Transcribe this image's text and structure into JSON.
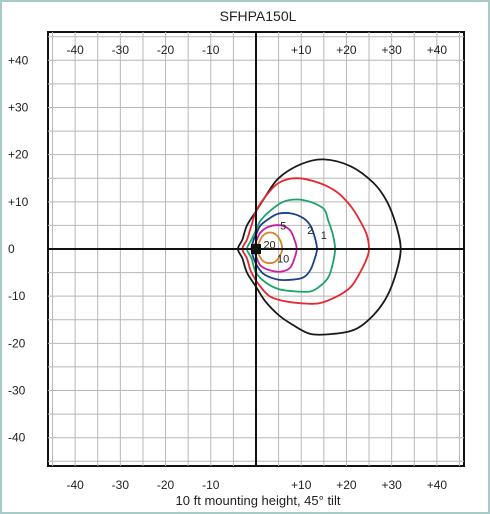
{
  "chart_data": {
    "type": "line",
    "title": "SFHPA150L",
    "xlabel": "10 ft mounting height, 45° tilt",
    "ylabel": "",
    "xlim": [
      -46,
      46
    ],
    "ylim": [
      -46,
      46
    ],
    "grid": true,
    "x_ticks": [
      "-40",
      "-30",
      "-20",
      "-10",
      "+10",
      "+20",
      "+30",
      "+40"
    ],
    "x_tick_values": [
      -40,
      -30,
      -20,
      -10,
      10,
      20,
      30,
      40
    ],
    "y_ticks": [
      "+40",
      "+30",
      "+20",
      "+10",
      "0",
      "-10",
      "-20",
      "-30",
      "-40"
    ],
    "y_tick_values": [
      40,
      30,
      20,
      10,
      0,
      -10,
      -20,
      -30,
      -40
    ],
    "fixture_marker": {
      "x": 0,
      "y": 0,
      "color": "#111111"
    },
    "series": [
      {
        "label": "1",
        "color": "#1a1a1a",
        "label_pos": {
          "x": 15,
          "y": 3
        },
        "points": [
          [
            -3,
            2
          ],
          [
            -4,
            0
          ],
          [
            -3,
            -2
          ],
          [
            -2,
            -5
          ],
          [
            0,
            -8
          ],
          [
            2,
            -11
          ],
          [
            5,
            -14
          ],
          [
            8,
            -16
          ],
          [
            12,
            -18
          ],
          [
            17,
            -18
          ],
          [
            22,
            -17
          ],
          [
            26,
            -14
          ],
          [
            29,
            -10
          ],
          [
            31,
            -5
          ],
          [
            32,
            0
          ],
          [
            31,
            5
          ],
          [
            29,
            10
          ],
          [
            26,
            14
          ],
          [
            21,
            17.5
          ],
          [
            15,
            19
          ],
          [
            10,
            18
          ],
          [
            5,
            15
          ],
          [
            2,
            11
          ],
          [
            0,
            8
          ],
          [
            -2,
            5
          ]
        ]
      },
      {
        "label": "2",
        "color": "#e8262d",
        "label_pos": {
          "x": 12,
          "y": 4
        },
        "points": [
          [
            -2,
            2
          ],
          [
            -3,
            0
          ],
          [
            -2,
            -2
          ],
          [
            -1,
            -5
          ],
          [
            1,
            -8
          ],
          [
            3,
            -10
          ],
          [
            6,
            -11
          ],
          [
            10,
            -11.5
          ],
          [
            14,
            -11.5
          ],
          [
            18,
            -10
          ],
          [
            21,
            -8
          ],
          [
            23,
            -5
          ],
          [
            24.5,
            -2
          ],
          [
            25,
            0
          ],
          [
            24.5,
            3
          ],
          [
            23,
            6
          ],
          [
            21,
            9
          ],
          [
            18,
            12
          ],
          [
            14,
            14
          ],
          [
            9,
            15
          ],
          [
            5,
            14
          ],
          [
            2,
            11
          ],
          [
            0,
            8
          ],
          [
            -1,
            5
          ]
        ]
      },
      {
        "label": "5",
        "color": "#1aa36b",
        "label_pos": {
          "x": 6,
          "y": 5
        },
        "points": [
          [
            -1,
            2
          ],
          [
            -2,
            0
          ],
          [
            -1,
            -2
          ],
          [
            0,
            -5
          ],
          [
            2,
            -7
          ],
          [
            5,
            -8.5
          ],
          [
            9,
            -9
          ],
          [
            12,
            -9
          ],
          [
            14,
            -8
          ],
          [
            16,
            -6
          ],
          [
            17,
            -3
          ],
          [
            17.5,
            0
          ],
          [
            17,
            3
          ],
          [
            16,
            6
          ],
          [
            15,
            8.5
          ],
          [
            12,
            10
          ],
          [
            9,
            10.5
          ],
          [
            6,
            10
          ],
          [
            3,
            8
          ],
          [
            1,
            6
          ],
          [
            0,
            4
          ]
        ]
      },
      {
        "label": "10",
        "color": "#1a3f8c",
        "label_pos": {
          "x": 6,
          "y": -2
        },
        "points": [
          [
            -0.5,
            2
          ],
          [
            -1,
            0
          ],
          [
            -0.5,
            -2
          ],
          [
            0.5,
            -4
          ],
          [
            2,
            -5.5
          ],
          [
            5,
            -6.5
          ],
          [
            8,
            -6.5
          ],
          [
            10.5,
            -6
          ],
          [
            12,
            -4.5
          ],
          [
            13,
            -2
          ],
          [
            13.5,
            0
          ],
          [
            13,
            2.5
          ],
          [
            12,
            5
          ],
          [
            10.5,
            6.5
          ],
          [
            8,
            7.5
          ],
          [
            5,
            7.5
          ],
          [
            3,
            6.5
          ],
          [
            1,
            5
          ],
          [
            0,
            3
          ]
        ]
      },
      {
        "label": "20",
        "color": "#c81ea0",
        "label_pos": {
          "x": 3,
          "y": 1
        },
        "points": [
          [
            0,
            1.5
          ],
          [
            -0.5,
            0
          ],
          [
            0,
            -1.5
          ],
          [
            1,
            -3.5
          ],
          [
            3,
            -4.5
          ],
          [
            5.5,
            -4.8
          ],
          [
            7.5,
            -4
          ],
          [
            8.5,
            -2
          ],
          [
            9,
            0
          ],
          [
            8.5,
            2
          ],
          [
            7.5,
            4
          ],
          [
            5.5,
            5
          ],
          [
            3,
            4.8
          ],
          [
            1,
            3.5
          ]
        ]
      },
      {
        "label": "",
        "color": "#d4862a",
        "label_pos": null,
        "points": [
          [
            0.5,
            1
          ],
          [
            0,
            0
          ],
          [
            0.5,
            -1
          ],
          [
            1.5,
            -2.5
          ],
          [
            3,
            -3
          ],
          [
            4.5,
            -2.5
          ],
          [
            5.5,
            -1
          ],
          [
            5.8,
            0
          ],
          [
            5.5,
            1.5
          ],
          [
            4.5,
            3
          ],
          [
            3,
            3.5
          ],
          [
            1.5,
            2.8
          ]
        ]
      }
    ]
  }
}
